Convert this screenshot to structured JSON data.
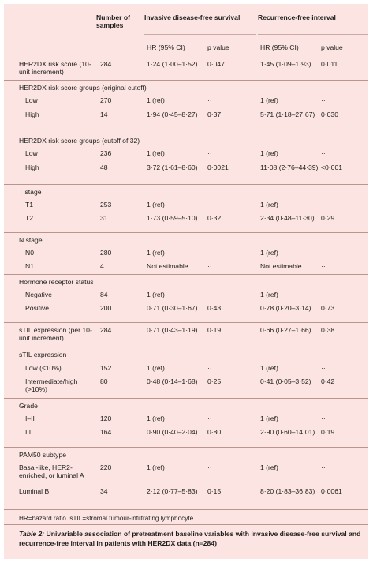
{
  "header": {
    "number_of_samples": "Number of samples",
    "invasive": "Invasive disease-free survival",
    "recurrence": "Recurrence-free interval",
    "hr_label": "HR (95% CI)",
    "p_label": "p value"
  },
  "rows": {
    "her2_score": {
      "label": "HER2DX risk score (10-unit increment)",
      "n": "284",
      "hr1": "1·24 (1·00–1·52)",
      "p1": "0·047",
      "hr2": "1·45 (1·09–1·93)",
      "p2": "0·011"
    },
    "groups_orig_title": "HER2DX risk score groups (original cutoff)",
    "orig_low": {
      "label": "Low",
      "n": "270",
      "hr1": "1 (ref)",
      "p1": "··",
      "hr2": "1 (ref)",
      "p2": "··"
    },
    "orig_high": {
      "label": "High",
      "n": "14",
      "hr1": "1·94 (0·45–8·27)",
      "p1": "0·37",
      "hr2": "5·71 (1·18–27·67)",
      "p2": "0·030"
    },
    "groups_32_title": "HER2DX risk score groups (cutoff of 32)",
    "c32_low": {
      "label": "Low",
      "n": "236",
      "hr1": "1 (ref)",
      "p1": "··",
      "hr2": "1 (ref)",
      "p2": "··"
    },
    "c32_high": {
      "label": "High",
      "n": "48",
      "hr1": "3·72 (1·61–8·60)",
      "p1": "0·0021",
      "hr2": "11·08 (2·76–44·39)",
      "p2": "<0·001"
    },
    "t_title": "T stage",
    "t1": {
      "label": "T1",
      "n": "253",
      "hr1": "1 (ref)",
      "p1": "··",
      "hr2": "1 (ref)",
      "p2": "··"
    },
    "t2": {
      "label": "T2",
      "n": "31",
      "hr1": "1·73 (0·59–5·10)",
      "p1": "0·32",
      "hr2": "2·34 (0·48–11·30)",
      "p2": "0·29"
    },
    "n_title": "N stage",
    "n0": {
      "label": "N0",
      "n": "280",
      "hr1": "1 (ref)",
      "p1": "··",
      "hr2": "1 (ref)",
      "p2": "··"
    },
    "n1": {
      "label": "N1",
      "n": "4",
      "hr1": "Not estimable",
      "p1": "··",
      "hr2": "Not estimable",
      "p2": "··"
    },
    "hr_title": "Hormone receptor status",
    "neg": {
      "label": "Negative",
      "n": "84",
      "hr1": "1 (ref)",
      "p1": "··",
      "hr2": "1 (ref)",
      "p2": "··"
    },
    "pos": {
      "label": "Positive",
      "n": "200",
      "hr1": "0·71 (0·30–1·67)",
      "p1": "0·43",
      "hr2": "0·78 (0·20–3·14)",
      "p2": "0·73"
    },
    "stil_cont": {
      "label": "sTIL expression (per 10-unit increment)",
      "n": "284",
      "hr1": "0·71 (0·43–1·19)",
      "p1": "0·19",
      "hr2": "0·66 (0·27–1·66)",
      "p2": "0·38"
    },
    "stil_title": "sTIL expression",
    "stil_low": {
      "label": "Low (≤10%)",
      "n": "152",
      "hr1": "1 (ref)",
      "p1": "··",
      "hr2": "1 (ref)",
      "p2": "··"
    },
    "stil_high": {
      "label": "Intermediate/high (>10%)",
      "n": "80",
      "hr1": "0·48 (0·14–1·68)",
      "p1": "0·25",
      "hr2": "0·41 (0·05–3·52)",
      "p2": "0·42"
    },
    "grade_title": "Grade",
    "g12": {
      "label": "I–II",
      "n": "120",
      "hr1": "1 (ref)",
      "p1": "··",
      "hr2": "1 (ref)",
      "p2": "··"
    },
    "g3": {
      "label": "III",
      "n": "164",
      "hr1": "0·90 (0·40–2·04)",
      "p1": "0·80",
      "hr2": "2·90 (0·60–14·01)",
      "p2": "0·19"
    },
    "pam_title": "PAM50 subtype",
    "pam_a": {
      "label": "Basal-like, HER2-enriched, or luminal A",
      "n": "220",
      "hr1": "1 (ref)",
      "p1": "··",
      "hr2": "1 (ref)",
      "p2": "··"
    },
    "pam_b": {
      "label": "Luminal B",
      "n": "34",
      "hr1": "2·12 (0·77–5·83)",
      "p1": "0·15",
      "hr2": "8·20 (1·83–36·83)",
      "p2": "0·0061"
    }
  },
  "footnote": "HR=hazard ratio. sTIL=stromal tumour-infiltrating lymphocyte.",
  "caption_label": "Table 2:",
  "caption_text": " Univariable association of pretreatment baseline variables with invasive disease-free survival and recurrence-free interval in patients with HER2DX data (n=284)"
}
